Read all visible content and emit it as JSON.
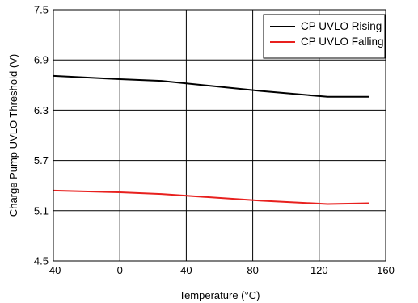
{
  "chart_data": {
    "type": "line",
    "xlabel": "Temperature (°C)",
    "ylabel": "Charge Pump UVLO Threshold (V)",
    "xlim": [
      -40,
      160
    ],
    "ylim": [
      4.5,
      7.5
    ],
    "xticks": [
      -40,
      0,
      40,
      80,
      120,
      160
    ],
    "yticks": [
      4.5,
      5.1,
      5.7,
      6.3,
      6.9,
      7.5
    ],
    "xtick_labels": [
      "-40",
      "0",
      "40",
      "80",
      "120",
      "160"
    ],
    "ytick_labels": [
      "4.5",
      "5.1",
      "5.7",
      "6.3",
      "6.9",
      "7.5"
    ],
    "grid": true,
    "legend_position": "top-right",
    "series": [
      {
        "name": "CP UVLO Rising",
        "color": "#000000",
        "x": [
          -40,
          0,
          25,
          85,
          125,
          150
        ],
        "y": [
          6.71,
          6.67,
          6.65,
          6.53,
          6.46,
          6.46
        ]
      },
      {
        "name": "CP UVLO Falling",
        "color": "#e8201e",
        "x": [
          -40,
          0,
          25,
          85,
          125,
          150
        ],
        "y": [
          5.34,
          5.32,
          5.3,
          5.22,
          5.18,
          5.19
        ]
      }
    ]
  }
}
